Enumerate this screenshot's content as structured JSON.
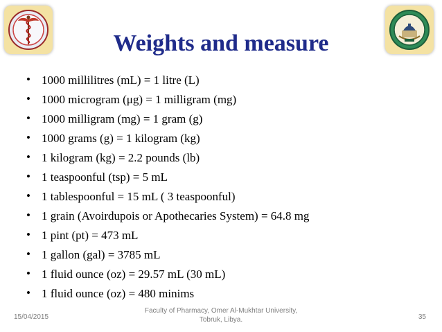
{
  "slide": {
    "title": "Weights and measure",
    "bullet_glyph": "•",
    "bullets": [
      "1000 millilitres (mL) = 1 litre (L)",
      "1000 microgram (μg) = 1 milligram (mg)",
      "1000 milligram (mg) = 1 gram (g)",
      "1000 grams (g) = 1 kilogram (kg)",
      "1 kilogram (kg) = 2.2 pounds (lb)",
      "1 teaspoonful (tsp) = 5 mL",
      "1 tablespoonful = 15 mL ( 3 teaspoonful)",
      "1 grain (Avoirdupois or Apothecaries System) = 64.8 mg",
      "1 pint (pt) = 473 mL",
      "1 gallon (gal) = 3785 mL",
      "1 fluid ounce (oz) = 29.57 mL (30 mL)",
      "1 fluid ounce (oz) = 480 minims"
    ]
  },
  "logos": {
    "left_icon": "caduceus-emblem-icon",
    "right_icon": "university-seal-icon"
  },
  "footer": {
    "date": "15/04/2015",
    "institution_line1": "Faculty of Pharmacy, Omer Al-Mukhtar University,",
    "institution_line2": "Tobruk, Libya.",
    "page_number": "35"
  },
  "colors": {
    "title": "#1f2b8a",
    "footer_text": "#7f7f7f",
    "logo_frame": "#f4e2a3"
  }
}
